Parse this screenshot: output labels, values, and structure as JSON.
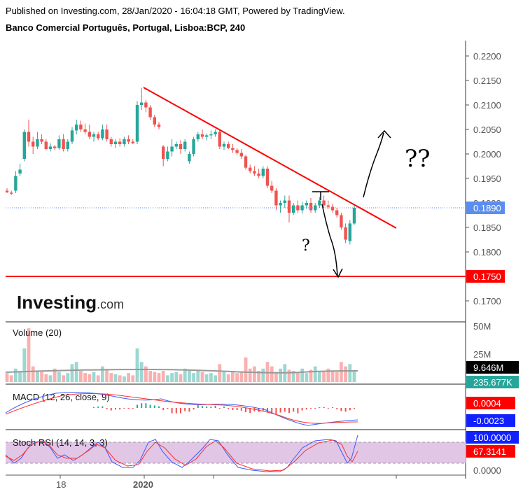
{
  "header": {
    "published": "Published on Investing.com, 28/Jan/2020 - 16:04:18 GMT, Powered by TradingView.",
    "symbol": "Banco Comercial Português, Portugal, Lisboa:BCP, 240"
  },
  "logo": {
    "text": "Investing",
    "suffix": ".com"
  },
  "colors": {
    "up": "#26a69a",
    "down": "#ef5350",
    "trendline": "#ff0000",
    "price_tag": "#5b8def",
    "support_tag": "#ff0000",
    "rsi_band": "#e1c6e6"
  },
  "chart_data": [
    {
      "type": "candlestick",
      "title": "Banco Comercial Português, Portugal, Lisboa:BCP, 240",
      "ylim": [
        0.1665,
        0.2225
      ],
      "y_ticks": [
        "0.2200",
        "0.2150",
        "0.2100",
        "0.2050",
        "0.2000",
        "0.1950",
        "0.1900",
        "0.1850",
        "0.1800",
        "0.1750",
        "0.1700"
      ],
      "x_tick_labels": [
        "18",
        "2020"
      ],
      "last_price": "0.1890",
      "support_level": "0.1750",
      "annotations": [
        "?",
        "??"
      ],
      "candles": [
        {
          "o": 0.1925,
          "h": 0.193,
          "l": 0.192,
          "c": 0.1922
        },
        {
          "o": 0.1921,
          "h": 0.1925,
          "l": 0.1916,
          "c": 0.1919
        },
        {
          "o": 0.1925,
          "h": 0.1965,
          "l": 0.192,
          "c": 0.1955
        },
        {
          "o": 0.196,
          "h": 0.198,
          "l": 0.1955,
          "c": 0.1968
        },
        {
          "o": 0.199,
          "h": 0.205,
          "l": 0.1985,
          "c": 0.2045
        },
        {
          "o": 0.2045,
          "h": 0.207,
          "l": 0.2015,
          "c": 0.2025
        },
        {
          "o": 0.2025,
          "h": 0.2035,
          "l": 0.2,
          "c": 0.2015
        },
        {
          "o": 0.2015,
          "h": 0.2045,
          "l": 0.201,
          "c": 0.203
        },
        {
          "o": 0.203,
          "h": 0.204,
          "l": 0.202,
          "c": 0.2025
        },
        {
          "o": 0.2025,
          "h": 0.203,
          "l": 0.2008,
          "c": 0.201
        },
        {
          "o": 0.201,
          "h": 0.2022,
          "l": 0.2005,
          "c": 0.2015
        },
        {
          "o": 0.2015,
          "h": 0.2018,
          "l": 0.2008,
          "c": 0.2012
        },
        {
          "o": 0.2012,
          "h": 0.2038,
          "l": 0.2008,
          "c": 0.203
        },
        {
          "o": 0.203,
          "h": 0.204,
          "l": 0.2005,
          "c": 0.201
        },
        {
          "o": 0.201,
          "h": 0.203,
          "l": 0.2005,
          "c": 0.2025
        },
        {
          "o": 0.2025,
          "h": 0.2055,
          "l": 0.202,
          "c": 0.2048
        },
        {
          "o": 0.2048,
          "h": 0.207,
          "l": 0.204,
          "c": 0.206
        },
        {
          "o": 0.206,
          "h": 0.2068,
          "l": 0.2045,
          "c": 0.205
        },
        {
          "o": 0.205,
          "h": 0.2062,
          "l": 0.204,
          "c": 0.2045
        },
        {
          "o": 0.2045,
          "h": 0.206,
          "l": 0.203,
          "c": 0.2035
        },
        {
          "o": 0.2035,
          "h": 0.2045,
          "l": 0.2025,
          "c": 0.204
        },
        {
          "o": 0.204,
          "h": 0.2045,
          "l": 0.2028,
          "c": 0.2032
        },
        {
          "o": 0.2032,
          "h": 0.206,
          "l": 0.2028,
          "c": 0.205
        },
        {
          "o": 0.205,
          "h": 0.206,
          "l": 0.2025,
          "c": 0.203
        },
        {
          "o": 0.203,
          "h": 0.2035,
          "l": 0.2015,
          "c": 0.202
        },
        {
          "o": 0.202,
          "h": 0.203,
          "l": 0.2012,
          "c": 0.2025
        },
        {
          "o": 0.2025,
          "h": 0.2032,
          "l": 0.2015,
          "c": 0.202
        },
        {
          "o": 0.202,
          "h": 0.2035,
          "l": 0.2015,
          "c": 0.203
        },
        {
          "o": 0.203,
          "h": 0.2038,
          "l": 0.202,
          "c": 0.2025
        },
        {
          "o": 0.2025,
          "h": 0.203,
          "l": 0.202,
          "c": 0.2022
        },
        {
          "o": 0.2025,
          "h": 0.2108,
          "l": 0.202,
          "c": 0.21
        },
        {
          "o": 0.21,
          "h": 0.2135,
          "l": 0.209,
          "c": 0.2105
        },
        {
          "o": 0.2105,
          "h": 0.211,
          "l": 0.2085,
          "c": 0.2095
        },
        {
          "o": 0.2095,
          "h": 0.21,
          "l": 0.207,
          "c": 0.2075
        },
        {
          "o": 0.2075,
          "h": 0.208,
          "l": 0.2055,
          "c": 0.206
        },
        {
          "o": 0.206,
          "h": 0.2065,
          "l": 0.205,
          "c": 0.2055
        },
        {
          "o": 0.2015,
          "h": 0.2018,
          "l": 0.1975,
          "c": 0.199
        },
        {
          "o": 0.199,
          "h": 0.2015,
          "l": 0.1985,
          "c": 0.2005
        },
        {
          "o": 0.2005,
          "h": 0.203,
          "l": 0.1995,
          "c": 0.2015
        },
        {
          "o": 0.2015,
          "h": 0.2025,
          "l": 0.201,
          "c": 0.202
        },
        {
          "o": 0.202,
          "h": 0.2028,
          "l": 0.2,
          "c": 0.201
        },
        {
          "o": 0.201,
          "h": 0.203,
          "l": 0.2005,
          "c": 0.2025
        },
        {
          "o": 0.1985,
          "h": 0.2005,
          "l": 0.198,
          "c": 0.2
        },
        {
          "o": 0.2,
          "h": 0.2035,
          "l": 0.1995,
          "c": 0.203
        },
        {
          "o": 0.203,
          "h": 0.2045,
          "l": 0.2025,
          "c": 0.204
        },
        {
          "o": 0.204,
          "h": 0.205,
          "l": 0.203,
          "c": 0.2035
        },
        {
          "o": 0.2035,
          "h": 0.2042,
          "l": 0.2028,
          "c": 0.2038
        },
        {
          "o": 0.2038,
          "h": 0.2048,
          "l": 0.203,
          "c": 0.204
        },
        {
          "o": 0.204,
          "h": 0.205,
          "l": 0.2035,
          "c": 0.2045
        },
        {
          "o": 0.2045,
          "h": 0.205,
          "l": 0.201,
          "c": 0.2015
        },
        {
          "o": 0.2015,
          "h": 0.2025,
          "l": 0.2008,
          "c": 0.202
        },
        {
          "o": 0.202,
          "h": 0.2025,
          "l": 0.201,
          "c": 0.2012
        },
        {
          "o": 0.2012,
          "h": 0.202,
          "l": 0.2002,
          "c": 0.2008
        },
        {
          "o": 0.2008,
          "h": 0.2012,
          "l": 0.1998,
          "c": 0.2002
        },
        {
          "o": 0.2002,
          "h": 0.201,
          "l": 0.199,
          "c": 0.1995
        },
        {
          "o": 0.1995,
          "h": 0.1998,
          "l": 0.1968,
          "c": 0.1972
        },
        {
          "o": 0.1972,
          "h": 0.1978,
          "l": 0.196,
          "c": 0.1965
        },
        {
          "o": 0.1965,
          "h": 0.1975,
          "l": 0.1955,
          "c": 0.196
        },
        {
          "o": 0.196,
          "h": 0.197,
          "l": 0.195,
          "c": 0.1955
        },
        {
          "o": 0.1955,
          "h": 0.1975,
          "l": 0.195,
          "c": 0.197
        },
        {
          "o": 0.197,
          "h": 0.1975,
          "l": 0.193,
          "c": 0.1935
        },
        {
          "o": 0.1935,
          "h": 0.1945,
          "l": 0.192,
          "c": 0.1925
        },
        {
          "o": 0.1925,
          "h": 0.193,
          "l": 0.1885,
          "c": 0.1895
        },
        {
          "o": 0.1895,
          "h": 0.1905,
          "l": 0.188,
          "c": 0.19
        },
        {
          "o": 0.19,
          "h": 0.1915,
          "l": 0.189,
          "c": 0.1905
        },
        {
          "o": 0.1905,
          "h": 0.1915,
          "l": 0.186,
          "c": 0.188
        },
        {
          "o": 0.188,
          "h": 0.19,
          "l": 0.1875,
          "c": 0.1895
        },
        {
          "o": 0.1895,
          "h": 0.1905,
          "l": 0.188,
          "c": 0.1885
        },
        {
          "o": 0.1885,
          "h": 0.1902,
          "l": 0.1878,
          "c": 0.1895
        },
        {
          "o": 0.1895,
          "h": 0.1905,
          "l": 0.1888,
          "c": 0.19
        },
        {
          "o": 0.19,
          "h": 0.191,
          "l": 0.188,
          "c": 0.1885
        },
        {
          "o": 0.1885,
          "h": 0.19,
          "l": 0.188,
          "c": 0.1895
        },
        {
          "o": 0.1895,
          "h": 0.1912,
          "l": 0.189,
          "c": 0.1905
        },
        {
          "o": 0.1905,
          "h": 0.1915,
          "l": 0.189,
          "c": 0.1895
        },
        {
          "o": 0.1895,
          "h": 0.1905,
          "l": 0.1888,
          "c": 0.1892
        },
        {
          "o": 0.1892,
          "h": 0.1898,
          "l": 0.188,
          "c": 0.1885
        },
        {
          "o": 0.1885,
          "h": 0.189,
          "l": 0.187,
          "c": 0.1875
        },
        {
          "o": 0.1875,
          "h": 0.188,
          "l": 0.1845,
          "c": 0.185
        },
        {
          "o": 0.185,
          "h": 0.1858,
          "l": 0.1818,
          "c": 0.1825
        },
        {
          "o": 0.1822,
          "h": 0.1865,
          "l": 0.1815,
          "c": 0.1858
        },
        {
          "o": 0.1858,
          "h": 0.1895,
          "l": 0.1855,
          "c": 0.189
        }
      ]
    },
    {
      "type": "bar",
      "title": "Volume (20)",
      "y_ticks": [
        "50M",
        "25M"
      ],
      "last_values": [
        "9.646M",
        "235.677K"
      ],
      "values": [
        8,
        6,
        12,
        10,
        30,
        48,
        14,
        10,
        9,
        7,
        6,
        12,
        9,
        6,
        8,
        16,
        18,
        10,
        8,
        7,
        9,
        6,
        14,
        11,
        8,
        7,
        6,
        5,
        8,
        6,
        30,
        18,
        14,
        10,
        9,
        8,
        10,
        6,
        8,
        9,
        7,
        12,
        11,
        8,
        10,
        9,
        7,
        8,
        6,
        16,
        9,
        7,
        10,
        8,
        9,
        22,
        12,
        14,
        10,
        12,
        18,
        14,
        9,
        12,
        16,
        11,
        10,
        9,
        12,
        8,
        11,
        14,
        10,
        9,
        12,
        10,
        9,
        18,
        14,
        16,
        10
      ]
    },
    {
      "type": "line",
      "title": "MACD (12, 26, close, 9)",
      "last_values": [
        "0.0004",
        "-0.0023"
      ]
    },
    {
      "type": "line",
      "title": "Stoch RSI (14, 14, 3, 3)",
      "y_ticks": [
        "0.0000"
      ],
      "last_values": [
        "100.0000",
        "67.3141"
      ]
    }
  ]
}
